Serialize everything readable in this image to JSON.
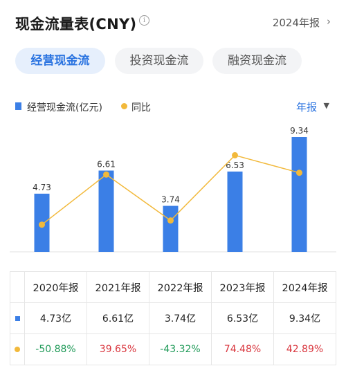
{
  "header": {
    "title": "现金流量表(CNY)",
    "period_label": "2024年报",
    "chevron": "›"
  },
  "tabs": [
    {
      "label": "经营现金流",
      "active": true
    },
    {
      "label": "投资现金流",
      "active": false
    },
    {
      "label": "融资现金流",
      "active": false
    }
  ],
  "legend": {
    "bar_label": "经营现金流(亿元)",
    "line_label": "同比"
  },
  "period_select": {
    "label": "年报",
    "caret": "▼"
  },
  "colors": {
    "bar": "#3b7fe6",
    "line": "#f2b93b",
    "positive": "#d9363e",
    "negative": "#1f9a58",
    "accent": "#2a73e0"
  },
  "chart_data": {
    "type": "bar",
    "categories": [
      "2020年报",
      "2021年报",
      "2022年报",
      "2023年报",
      "2024年报"
    ],
    "series": [
      {
        "name": "经营现金流(亿元)",
        "type": "bar",
        "values": [
          4.73,
          6.61,
          3.74,
          6.53,
          9.34
        ]
      },
      {
        "name": "同比",
        "type": "line",
        "values": [
          -50.88,
          39.65,
          -43.32,
          74.48,
          42.89
        ]
      }
    ],
    "bar_labels": [
      "4.73",
      "6.61",
      "3.74",
      "6.53",
      "9.34"
    ],
    "bar_ylim": [
      0,
      9.34
    ],
    "line_ylim": [
      -60,
      80
    ],
    "grid": false
  },
  "table": {
    "headers": [
      "2020年报",
      "2021年报",
      "2022年报",
      "2023年报",
      "2024年报"
    ],
    "value_row": [
      "4.73亿",
      "6.61亿",
      "3.74亿",
      "6.53亿",
      "9.34亿"
    ],
    "yoy_row": [
      "-50.88%",
      "39.65%",
      "-43.32%",
      "74.48%",
      "42.89%"
    ]
  }
}
